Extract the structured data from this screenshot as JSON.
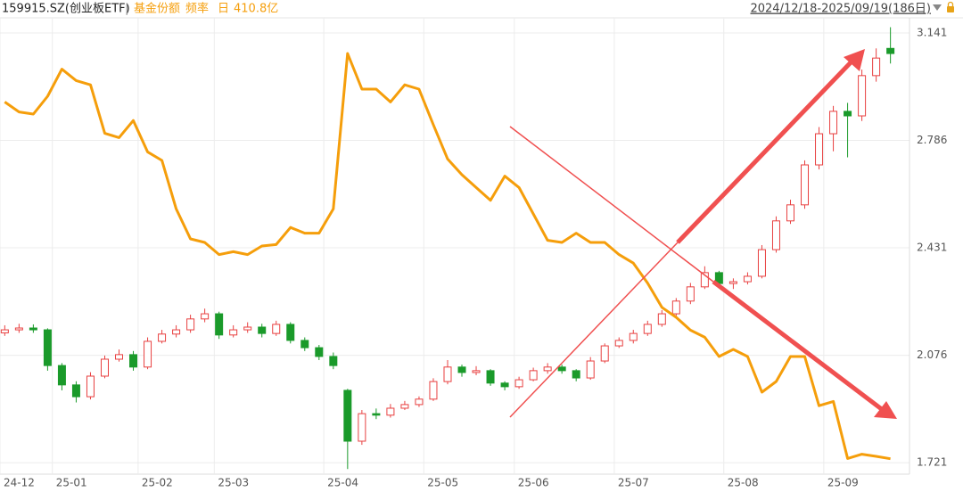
{
  "chart_data": {
    "type": "candlestick",
    "title": "159915.SZ(创业板ETF)",
    "title_separator": "|",
    "date_range": "2024/12/18-2025/09/19(186日)",
    "x": [
      0,
      3,
      6,
      9,
      12,
      15,
      18,
      21,
      24,
      27,
      30,
      33,
      36,
      39,
      42,
      45,
      48,
      51,
      54,
      57,
      60,
      63,
      66,
      69,
      72,
      75,
      78,
      81,
      84,
      87,
      90,
      93,
      96,
      99,
      102,
      105,
      108,
      111,
      114,
      117,
      120,
      123,
      126,
      129,
      132,
      135,
      138,
      141,
      144,
      147,
      150,
      153,
      156,
      159,
      162,
      165,
      168,
      171,
      174,
      177,
      180,
      183,
      186
    ],
    "open": [
      2.15,
      2.16,
      2.166,
      2.16,
      2.042,
      1.978,
      1.939,
      2.007,
      2.063,
      2.078,
      2.037,
      2.122,
      2.146,
      2.16,
      2.196,
      2.213,
      2.143,
      2.16,
      2.169,
      2.148,
      2.178,
      2.125,
      2.101,
      2.072,
      1.96,
      1.792,
      1.883,
      1.878,
      1.901,
      1.913,
      1.931,
      1.989,
      2.037,
      2.019,
      2.025,
      1.984,
      1.972,
      1.995,
      2.025,
      2.037,
      2.025,
      2.001,
      2.057,
      2.107,
      2.125,
      2.148,
      2.178,
      2.213,
      2.255,
      2.302,
      2.349,
      2.313,
      2.319,
      2.337,
      2.425,
      2.52,
      2.573,
      2.705,
      2.808,
      2.882,
      2.867,
      3.0,
      3.09
    ],
    "high": [
      2.175,
      2.18,
      2.178,
      2.165,
      2.05,
      1.99,
      2.02,
      2.075,
      2.095,
      2.09,
      2.135,
      2.16,
      2.175,
      2.21,
      2.23,
      2.22,
      2.175,
      2.185,
      2.18,
      2.19,
      2.185,
      2.135,
      2.11,
      2.085,
      1.965,
      1.895,
      1.9,
      1.915,
      1.925,
      1.94,
      2.0,
      2.06,
      2.045,
      2.04,
      2.03,
      1.99,
      2.005,
      2.035,
      2.05,
      2.045,
      2.03,
      2.07,
      2.115,
      2.135,
      2.16,
      2.19,
      2.225,
      2.265,
      2.315,
      2.37,
      2.355,
      2.33,
      2.35,
      2.44,
      2.535,
      2.59,
      2.72,
      2.83,
      2.9,
      2.91,
      3.02,
      3.09,
      3.16
    ],
    "low": [
      2.14,
      2.15,
      2.15,
      2.025,
      1.96,
      1.92,
      1.93,
      2.0,
      2.055,
      2.025,
      2.03,
      2.115,
      2.135,
      2.15,
      2.185,
      2.13,
      2.135,
      2.15,
      2.135,
      2.14,
      2.115,
      2.09,
      2.06,
      2.03,
      1.7,
      1.78,
      1.865,
      1.87,
      1.895,
      1.905,
      1.925,
      1.98,
      2.005,
      2.01,
      1.975,
      1.96,
      1.965,
      1.99,
      2.015,
      2.015,
      1.99,
      1.995,
      2.05,
      2.1,
      2.115,
      2.14,
      2.17,
      2.205,
      2.245,
      2.295,
      2.3,
      2.295,
      2.31,
      2.33,
      2.415,
      2.51,
      2.56,
      2.69,
      2.75,
      2.73,
      2.85,
      2.98,
      3.04
    ],
    "close": [
      2.16,
      2.166,
      2.16,
      2.042,
      1.978,
      1.939,
      2.007,
      2.063,
      2.078,
      2.037,
      2.122,
      2.146,
      2.16,
      2.196,
      2.213,
      2.143,
      2.16,
      2.169,
      2.148,
      2.178,
      2.125,
      2.101,
      2.072,
      2.042,
      1.792,
      1.883,
      1.878,
      1.901,
      1.913,
      1.931,
      1.989,
      2.037,
      2.019,
      2.025,
      1.984,
      1.972,
      1.995,
      2.025,
      2.037,
      2.025,
      2.001,
      2.057,
      2.107,
      2.125,
      2.148,
      2.178,
      2.213,
      2.255,
      2.302,
      2.349,
      2.313,
      2.319,
      2.337,
      2.425,
      2.52,
      2.573,
      2.705,
      2.808,
      2.882,
      2.867,
      3.0,
      3.058,
      3.073
    ],
    "up_color": "#e84040",
    "down_color": "#1a9a2a",
    "xlim": [
      -1,
      190
    ],
    "xticks": [
      {
        "value": -1,
        "label": "24-12"
      },
      {
        "value": 10,
        "label": "25-01"
      },
      {
        "value": 28,
        "label": "25-02"
      },
      {
        "value": 44,
        "label": "25-03"
      },
      {
        "value": 67,
        "label": "25-04"
      },
      {
        "value": 88,
        "label": "25-05"
      },
      {
        "value": 107,
        "label": "25-06"
      },
      {
        "value": 128,
        "label": "25-07"
      },
      {
        "value": 151,
        "label": "25-08"
      },
      {
        "value": 172,
        "label": "25-09"
      }
    ],
    "ylim": [
      1.683,
      3.191
    ],
    "yticks": [
      1.721,
      2.076,
      2.431,
      2.786,
      3.141
    ],
    "grid": true,
    "line": {
      "name": "基金份额",
      "frequency_label": "频率",
      "frequency": "日",
      "color": "#f59e0b",
      "axis": "y2",
      "values": [
        661,
        654,
        652.5,
        665,
        684,
        676,
        673,
        639,
        636,
        648,
        626,
        620,
        586,
        565,
        562.5,
        554,
        556,
        554,
        560,
        561,
        573,
        569,
        569,
        586,
        695,
        670,
        670,
        661,
        673,
        670,
        645,
        621,
        610,
        601,
        592,
        609,
        601,
        582.5,
        564,
        562.5,
        569,
        562.5,
        562.5,
        554,
        548,
        534,
        517,
        510,
        501,
        496,
        482.5,
        487.5,
        482.5,
        457.5,
        465,
        482.5,
        482.5,
        448,
        451,
        411,
        414,
        412.5,
        410.8
      ],
      "latest": {
        "value": 410.8,
        "label": "410.8亿"
      }
    },
    "y2lim": [
      400,
      720
    ]
  }
}
